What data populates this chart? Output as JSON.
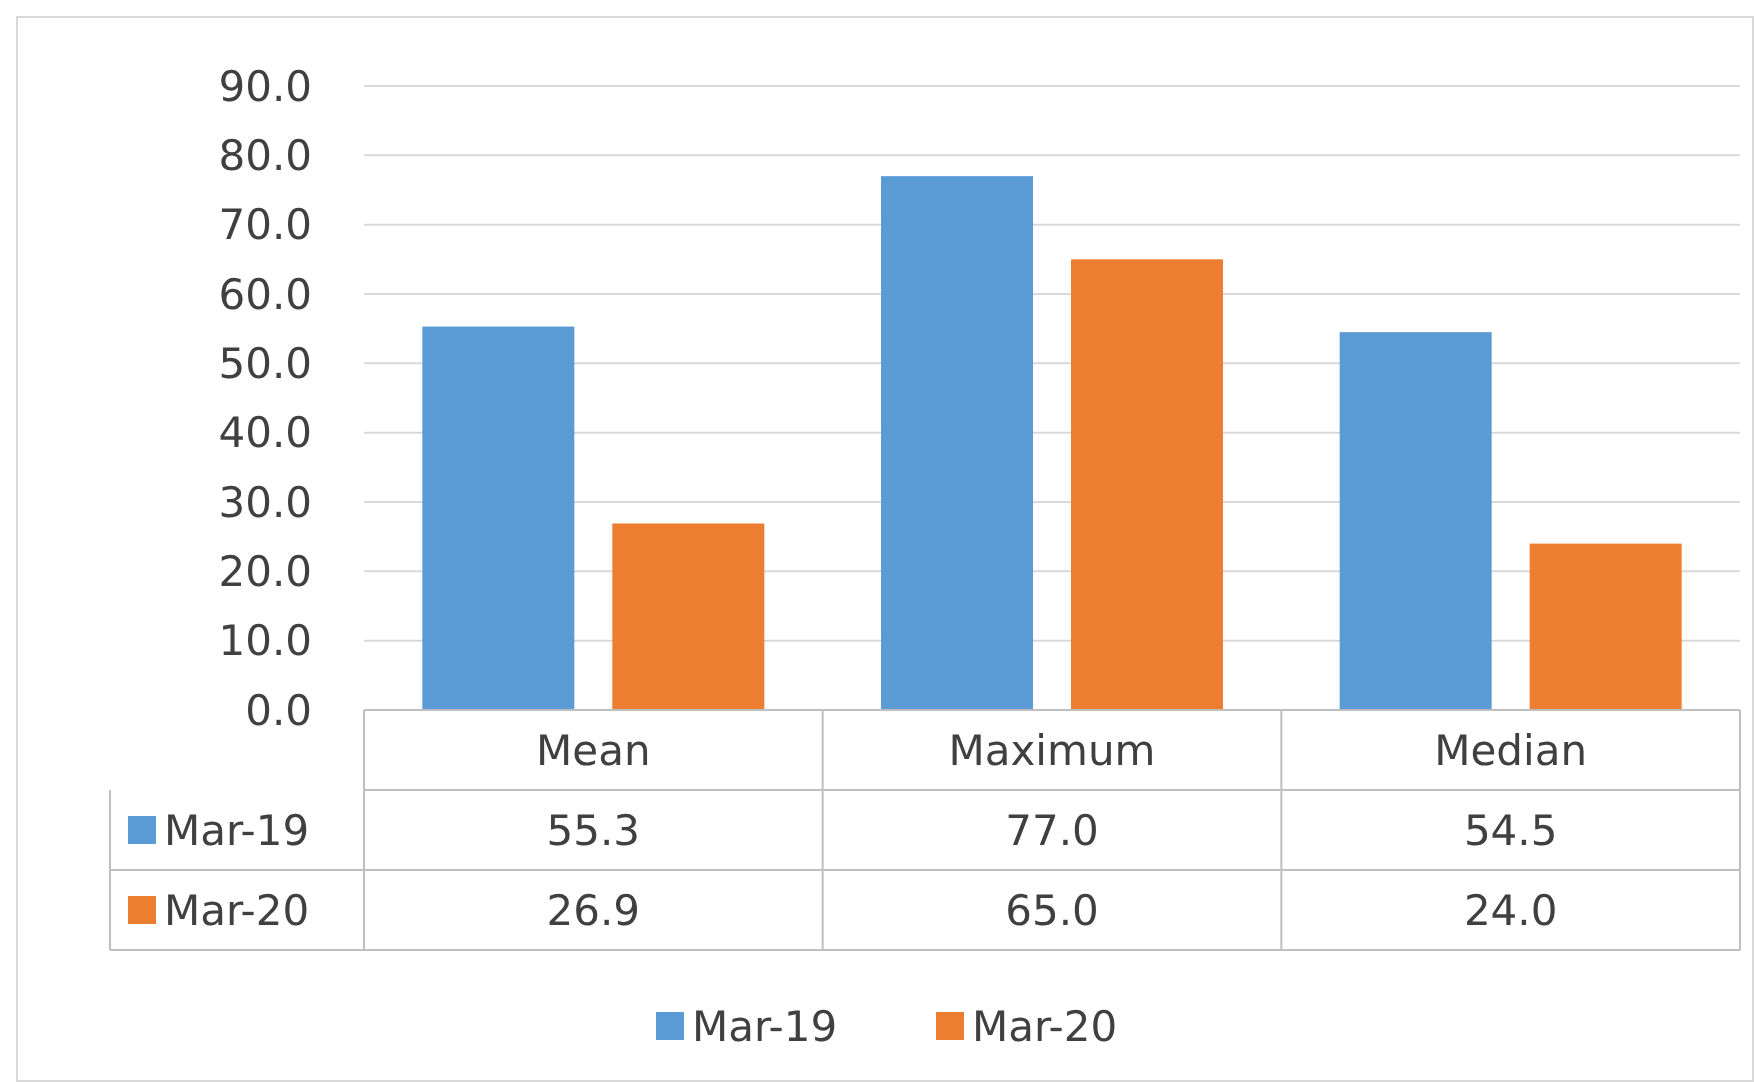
{
  "chart_data": {
    "type": "bar",
    "categories": [
      "Mean",
      "Maximum",
      "Median"
    ],
    "series": [
      {
        "name": "Mar-19",
        "color": "#5b9bd5",
        "values": [
          55.3,
          77.0,
          54.5
        ],
        "value_labels": [
          "55.3",
          "77.0",
          "54.5"
        ]
      },
      {
        "name": "Mar-20",
        "color": "#ed7d31",
        "values": [
          26.9,
          65.0,
          24.0
        ],
        "value_labels": [
          "26.9",
          "65.0",
          "24.0"
        ]
      }
    ],
    "ylim": [
      0,
      90
    ],
    "yticks": [
      {
        "value": 0,
        "label": "0.0"
      },
      {
        "value": 10,
        "label": "10.0"
      },
      {
        "value": 20,
        "label": "20.0"
      },
      {
        "value": 30,
        "label": "30.0"
      },
      {
        "value": 40,
        "label": "40.0"
      },
      {
        "value": 50,
        "label": "50.0"
      },
      {
        "value": 60,
        "label": "60.0"
      },
      {
        "value": 70,
        "label": "70.0"
      },
      {
        "value": 80,
        "label": "80.0"
      },
      {
        "value": 90,
        "label": "90.0"
      }
    ],
    "grid": "y",
    "legend": "bottom"
  }
}
